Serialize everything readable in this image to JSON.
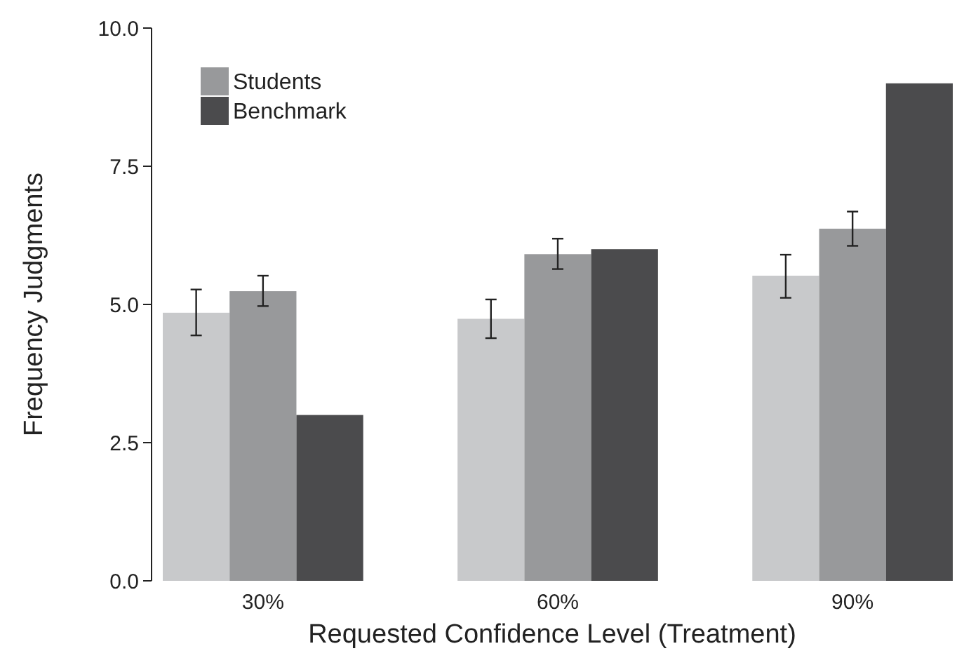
{
  "chart_data": {
    "type": "bar",
    "xlabel": "Requested Confidence Level (Treatment)",
    "ylabel": "Frequency Judgments",
    "categories": [
      "30%",
      "60%",
      "90%"
    ],
    "series": [
      {
        "color": "#c8c9cb",
        "values": [
          4.85,
          4.74,
          5.52
        ],
        "errors": [
          [
            4.44,
            5.27
          ],
          [
            4.39,
            5.09
          ],
          [
            5.12,
            5.9
          ]
        ]
      },
      {
        "name": "Students",
        "color": "#98999b",
        "values": [
          5.24,
          5.91,
          6.37
        ],
        "errors": [
          [
            4.97,
            5.52
          ],
          [
            5.64,
            6.19
          ],
          [
            6.06,
            6.68
          ]
        ]
      },
      {
        "name": "Benchmark",
        "color": "#4b4b4d",
        "values": [
          3.0,
          6.0,
          9.0
        ]
      }
    ],
    "ylim": [
      0,
      10
    ],
    "yticks": [
      {
        "value": 0,
        "label": "0.0"
      },
      {
        "value": 2.5,
        "label": "2.5"
      },
      {
        "value": 5,
        "label": "5.0"
      },
      {
        "value": 7.5,
        "label": "7.5"
      },
      {
        "value": 10,
        "label": "10.0"
      }
    ],
    "legend": "top left",
    "grid": false
  }
}
